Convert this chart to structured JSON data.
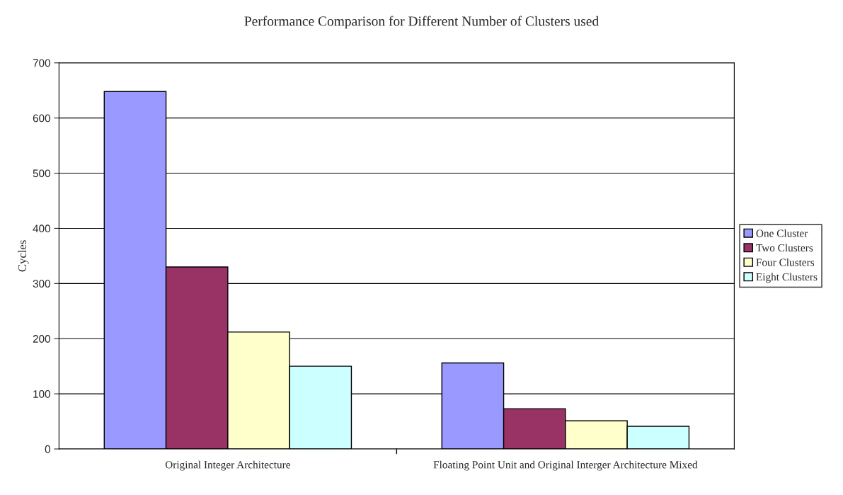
{
  "chart_data": {
    "type": "bar",
    "title": "Performance Comparison for Different Number of Clusters used",
    "ylabel": "Cycles",
    "categories": [
      "Original Integer Architecture",
      "Floating Point Unit and Original Interger Architecture Mixed"
    ],
    "series": [
      {
        "name": "One Cluster",
        "color": "#9999ff",
        "values": [
          648,
          156
        ]
      },
      {
        "name": "Two Clusters",
        "color": "#993366",
        "values": [
          330,
          73
        ]
      },
      {
        "name": "Four Clusters",
        "color": "#ffffcc",
        "values": [
          212,
          51
        ]
      },
      {
        "name": "Eight Clusters",
        "color": "#ccffff",
        "values": [
          150,
          41
        ]
      }
    ],
    "ylim": [
      0,
      700
    ],
    "yticks": [
      0,
      100,
      200,
      300,
      400,
      500,
      600,
      700
    ],
    "grid": "y",
    "legend": "right"
  }
}
